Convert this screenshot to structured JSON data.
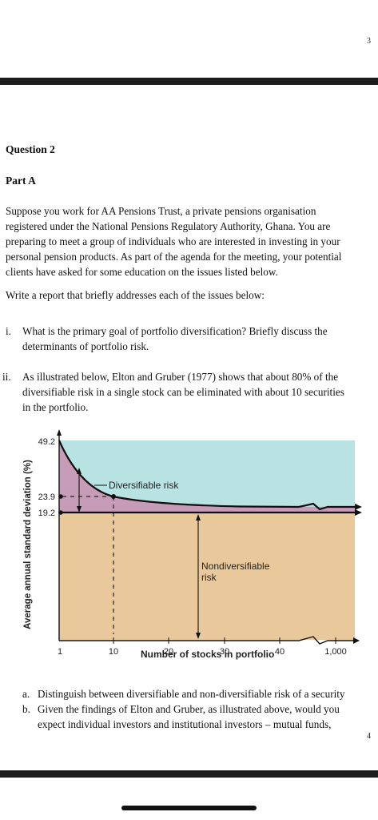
{
  "page_numbers": {
    "top": "3",
    "bottom": "4"
  },
  "question_title": "Question 2",
  "part_title": "Part A",
  "intro_lines": [
    "Suppose you work for AA Pensions Trust, a private pensions organisation",
    "registered under the National Pensions Regulatory Authority, Ghana.  You are",
    "preparing to meet a group of individuals who are interested in investing in your",
    "personal pension products. As part of the agenda for the meeting, your potential",
    "clients have asked for some education on the issues listed below."
  ],
  "instruction": "Write a report that briefly addresses each of the issues below:",
  "question_i": {
    "number": "i.",
    "lines": [
      "What is the primary goal of portfolio diversification? Briefly discuss the",
      "determinants of portfolio risk."
    ]
  },
  "question_ii": {
    "number": "ii.",
    "lines": [
      "As illustrated below, Elton and Gruber (1977) shows that about 80% of the",
      "diversifiable risk in a single stock can be eliminated with about 10 securities",
      "in the portfolio."
    ]
  },
  "sub_questions": [
    {
      "letter": "a.",
      "lines": [
        "Distinguish between diversifiable and non-diversifiable risk of a security"
      ]
    },
    {
      "letter": "b.",
      "lines": [
        "Given the findings of Elton and Gruber, as illustrated above, would you",
        "expect individual investors and institutional investors – mutual funds,"
      ]
    }
  ],
  "chart_data": {
    "type": "area",
    "xlabel": "Number of stocks in portfolio",
    "ylabel": "Average annual standard deviation (%)",
    "x_ticks": [
      "1",
      "10",
      "20",
      "30",
      "40",
      "1,000"
    ],
    "y_ticks": [
      "49.2",
      "23.9",
      "19.2"
    ],
    "annotations": {
      "diversifiable": "Diversifiable risk",
      "nondiversifiable_lines": [
        "Nondiversifiable",
        "risk"
      ]
    },
    "series": [
      {
        "x": [
          1,
          10,
          1000
        ],
        "y": [
          49.2,
          23.9,
          19.2
        ]
      }
    ],
    "market_risk_level": 19.2,
    "colors": {
      "diversifiable": "#c79cb9",
      "nondiversifiable": "#e9c99b",
      "background": "#b8e3e2",
      "curve": "#111111"
    }
  }
}
